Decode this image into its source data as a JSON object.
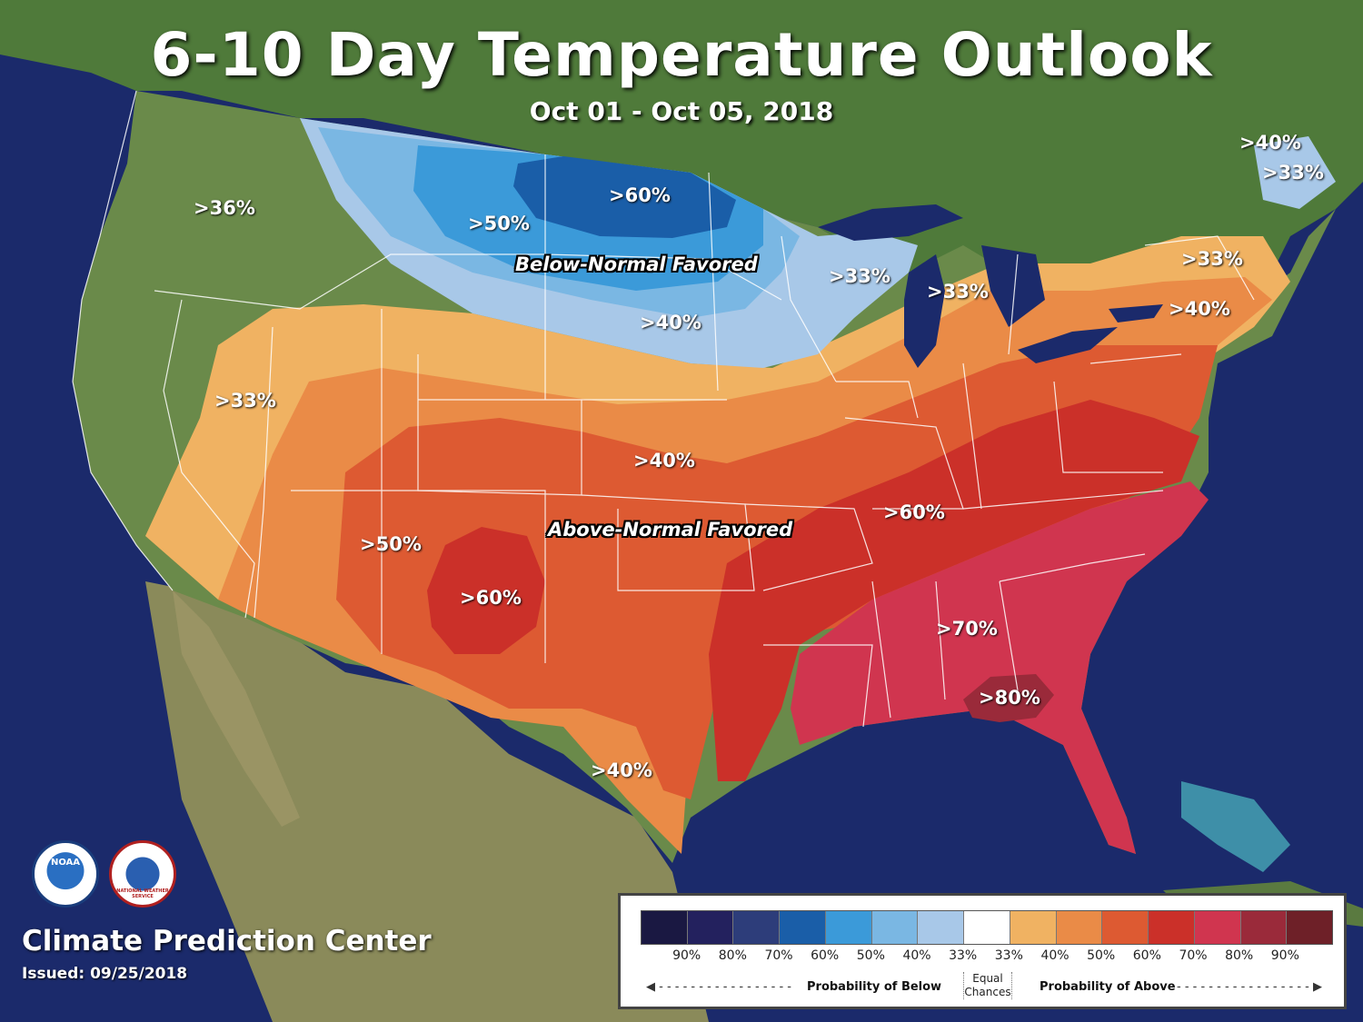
{
  "title": "6-10 Day Temperature Outlook",
  "subtitle": "Oct 01 - Oct 05, 2018",
  "map_labels": {
    "below": [
      ">60%",
      ">50%",
      ">40%",
      ">33%",
      ">40%",
      ">33%"
    ],
    "above": [
      ">36%",
      ">33%",
      ">33%",
      ">33%",
      ">40%",
      ">40%",
      ">40%",
      ">50%",
      ">60%",
      ">60%",
      ">70%",
      ">80%"
    ]
  },
  "favored": {
    "below": "Below-Normal Favored",
    "above": "Above-Normal Favored"
  },
  "footer": {
    "org": "Climate Prediction Center",
    "issued": "Issued: 09/25/2018"
  },
  "logos": {
    "noaa": "NOAA",
    "nws": "NATIONAL WEATHER SERVICE"
  },
  "legend": {
    "colors": [
      "#1a1842",
      "#23215e",
      "#2d3d7a",
      "#1a5ea8",
      "#3b9ad9",
      "#7ab7e3",
      "#a8c8e8",
      "#ffffff",
      "#f0b262",
      "#ea8b47",
      "#dd5a32",
      "#cb3029",
      "#d0354f",
      "#9a2a3a",
      "#6e2028"
    ],
    "ticks": [
      "90%",
      "80%",
      "70%",
      "60%",
      "50%",
      "40%",
      "33%",
      "33%",
      "40%",
      "50%",
      "60%",
      "70%",
      "80%",
      "90%"
    ],
    "below_label": "Probability of Below",
    "above_label": "Probability of Above",
    "equal_line1": "Equal",
    "equal_line2": "Chances"
  },
  "map_colors": {
    "ocean": "#1b2a6b",
    "land": "#4f7a3a",
    "below_33": "#a8c8e8",
    "below_40": "#7ab7e3",
    "below_50": "#3b9ad9",
    "below_60": "#1a5ea8",
    "above_33": "#f0b262",
    "above_40": "#ea8b47",
    "above_50": "#dd5a32",
    "above_60": "#cb3029",
    "above_70": "#d0354f",
    "above_80": "#9a2a3a"
  }
}
